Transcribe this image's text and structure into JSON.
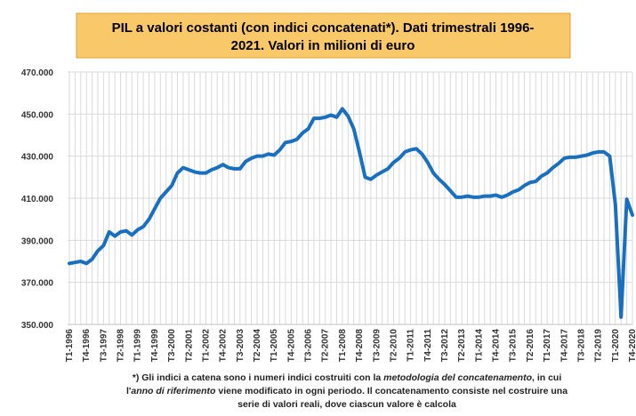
{
  "chart_data": {
    "type": "line",
    "title_lines": [
      "PIL a valori costanti (con indici concatenati*). Dati trimestrali 1996-",
      "2021. Valori in milioni di euro"
    ],
    "categories": [
      "T1-1996",
      null,
      null,
      "T4-1996",
      null,
      null,
      "T3-1997",
      null,
      null,
      "T2-1998",
      null,
      null,
      "T1-1999",
      null,
      null,
      "T4-1999",
      null,
      null,
      "T3-2000",
      null,
      null,
      "T2-2001",
      null,
      null,
      "T1-2002",
      null,
      null,
      "T4-2002",
      null,
      null,
      "T3-2003",
      null,
      null,
      "T2-2004",
      null,
      null,
      "T1-2005",
      null,
      null,
      "T4-2005",
      null,
      null,
      "T3-2006",
      null,
      null,
      "T2-2007",
      null,
      null,
      "T1-2008",
      null,
      null,
      "T4-2008",
      null,
      null,
      "T3-2009",
      null,
      null,
      "T2-2010",
      null,
      null,
      "T1-2011",
      null,
      null,
      "T4-2011",
      null,
      null,
      "T3-2012",
      null,
      null,
      "T2-2013",
      null,
      null,
      "T1-2014",
      null,
      null,
      "T4-2014",
      null,
      null,
      "T3-2015",
      null,
      null,
      "T2-2016",
      null,
      null,
      "T1-2017",
      null,
      null,
      "T4-2017",
      null,
      null,
      "T3-2018",
      null,
      null,
      "T2-2019",
      null,
      null,
      "T1-2020",
      null,
      null,
      "T4-2020"
    ],
    "series": [
      {
        "color": "#1a70c0",
        "values": [
          379000,
          379500,
          380000,
          379000,
          381000,
          385000,
          387500,
          394000,
          392000,
          394000,
          394500,
          392500,
          395000,
          396500,
          400000,
          405000,
          410000,
          413000,
          416000,
          422000,
          424500,
          423500,
          422500,
          422000,
          422000,
          423500,
          424500,
          426000,
          424500,
          424000,
          424000,
          427500,
          429000,
          430000,
          430000,
          431000,
          430500,
          433000,
          436500,
          437000,
          438000,
          441000,
          443000,
          448000,
          448000,
          448500,
          449500,
          448500,
          452500,
          449000,
          443000,
          432000,
          420000,
          419000,
          421000,
          422500,
          424000,
          427000,
          429000,
          432000,
          433000,
          433500,
          431000,
          427000,
          422000,
          419000,
          416500,
          413500,
          410500,
          410500,
          411000,
          410500,
          410500,
          411000,
          411000,
          411500,
          410500,
          411500,
          413000,
          414000,
          416000,
          417500,
          418000,
          420500,
          422000,
          424500,
          426500,
          429000,
          429500,
          429500,
          430000,
          430500,
          431500,
          432000,
          432000,
          430000,
          407000,
          353500,
          409500,
          402000
        ]
      }
    ],
    "ylim": [
      350000,
      470000
    ],
    "yticks": [
      {
        "value": 350000,
        "label": "350.000"
      },
      {
        "value": 370000,
        "label": "370.000"
      },
      {
        "value": 390000,
        "label": "390.000"
      },
      {
        "value": 410000,
        "label": "410.000"
      },
      {
        "value": 430000,
        "label": "430.000"
      },
      {
        "value": 450000,
        "label": "450.000"
      },
      {
        "value": 470000,
        "label": "470.000"
      }
    ],
    "grid": true,
    "footnote_lines": [
      {
        "parts": [
          {
            "text": "*) Gli indici a catena sono  i numeri indici costruiti con la ",
            "italic": false
          },
          {
            "text": "metodologia del concatenamento",
            "italic": true
          },
          {
            "text": ", in cui",
            "italic": false
          }
        ]
      },
      {
        "parts": [
          {
            "text": "l'",
            "italic": false
          },
          {
            "text": "anno di riferimento",
            "italic": true
          },
          {
            "text": " viene modificato in ogni periodo. Il concatenamento consiste nel costruire una",
            "italic": false
          }
        ]
      },
      {
        "parts": [
          {
            "text": "serie di valori reali, dove ciascun valore è calcola",
            "italic": false
          }
        ]
      }
    ]
  }
}
